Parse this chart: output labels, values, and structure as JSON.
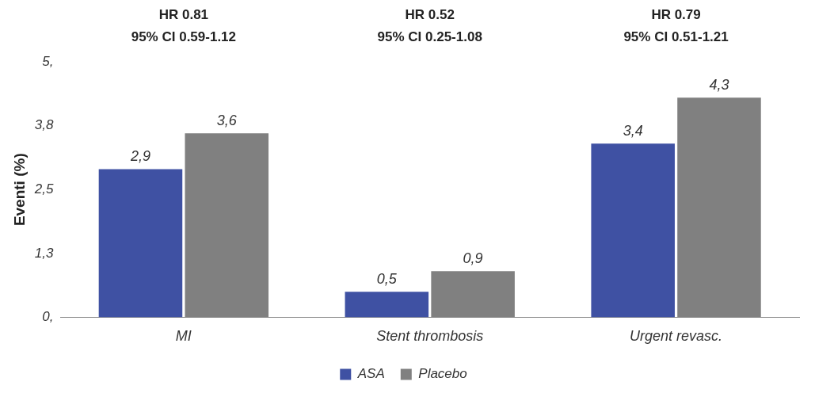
{
  "chart_data": {
    "type": "bar",
    "ylabel": "Eventi (%)",
    "categories": [
      "MI",
      "Stent thrombosis",
      "Urgent revasc."
    ],
    "series": [
      {
        "name": "ASA",
        "color": "#3f51a3",
        "values": [
          2.9,
          0.5,
          3.4
        ],
        "value_labels": [
          "2,9",
          "0,5",
          "3,4"
        ]
      },
      {
        "name": "Placebo",
        "color": "#808080",
        "values": [
          3.6,
          0.9,
          4.3
        ],
        "value_labels": [
          "3,6",
          "0,9",
          "4,3"
        ]
      }
    ],
    "ylim": [
      0,
      5
    ],
    "yticks": [
      {
        "value": 0,
        "label": "0,"
      },
      {
        "value": 1.25,
        "label": "1,3"
      },
      {
        "value": 2.5,
        "label": "2,5"
      },
      {
        "value": 3.75,
        "label": "3,8"
      },
      {
        "value": 5,
        "label": "5,"
      }
    ],
    "annotations": [
      "HR 0.81\n95% CI 0.59-1.12",
      "HR 0.52\n95% CI 0.25-1.08",
      "HR 0.79\n95% CI 0.51-1.21"
    ],
    "grid": false,
    "legend": "bottom"
  }
}
